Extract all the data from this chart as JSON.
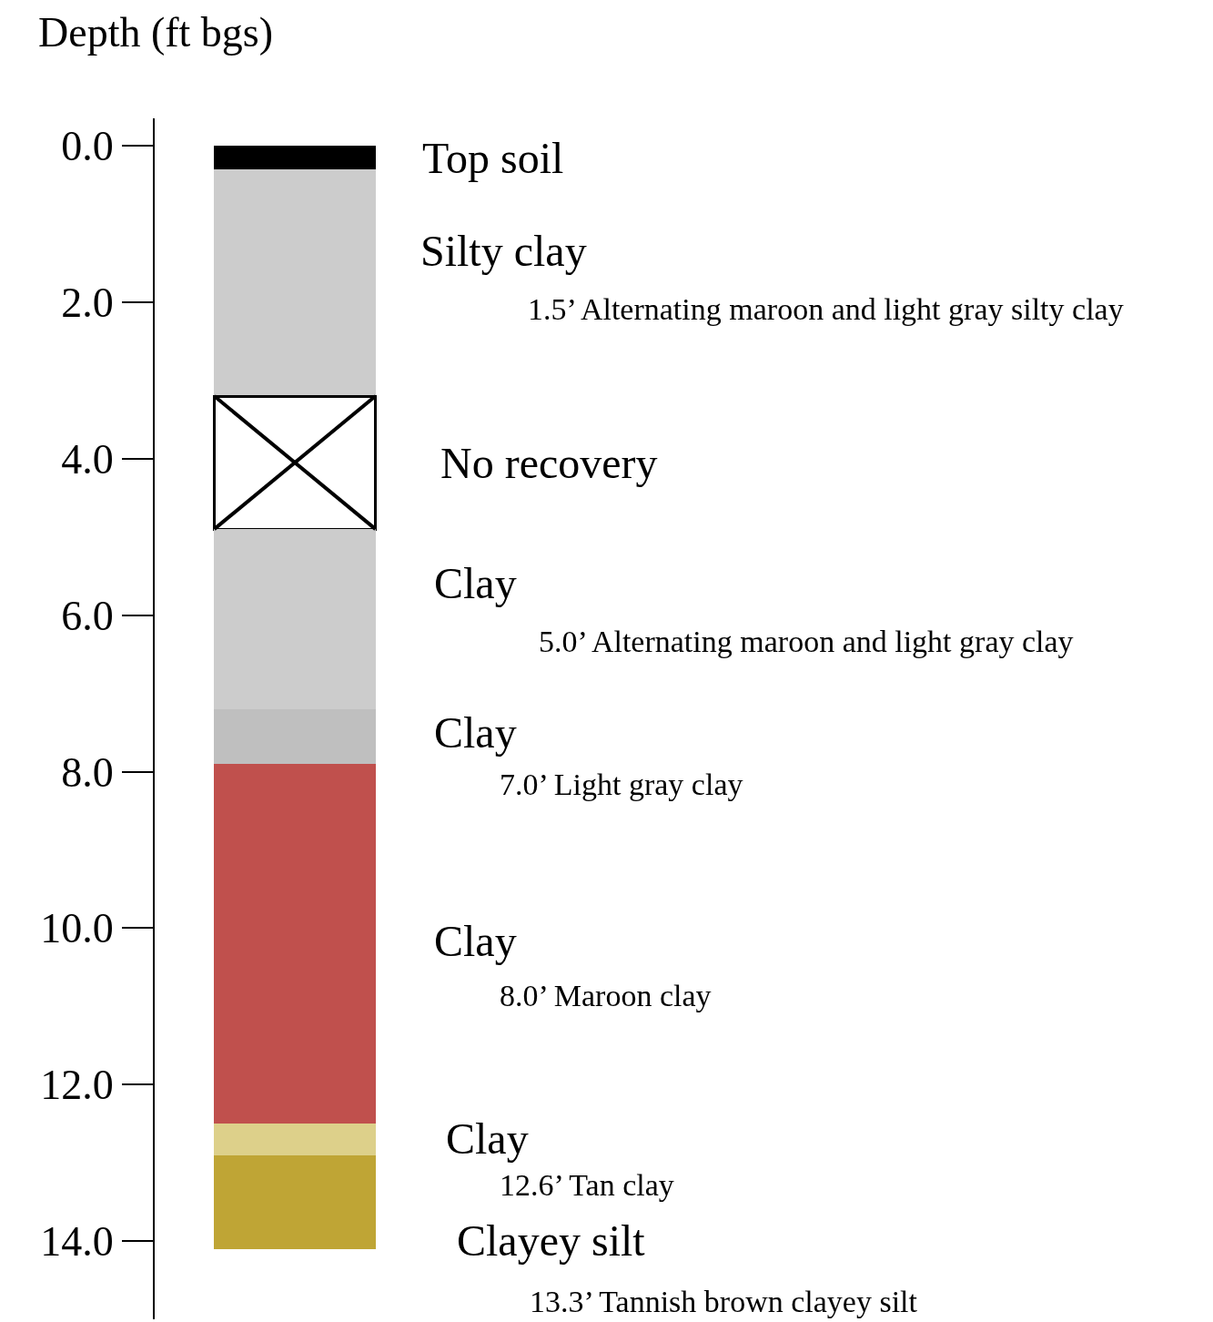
{
  "chart_data": {
    "type": "bar",
    "stacked": true,
    "ylabel": "Depth (ft bgs)",
    "categories": [
      null
    ],
    "series": [
      {
        "name": "Top soil",
        "color": "#000000",
        "values": [
          0.3
        ]
      },
      {
        "name": "Silty clay",
        "color": "#cccccc",
        "values": [
          2.9
        ]
      },
      {
        "name": "No recovery",
        "color": "#ffffff",
        "values": [
          1.7
        ]
      },
      {
        "name": "Clay",
        "color": "#cccccc",
        "values": [
          2.3
        ]
      },
      {
        "name": "Clay",
        "color": "#bfbfbf",
        "values": [
          0.7
        ]
      },
      {
        "name": "Clay",
        "color": "#c0504d",
        "values": [
          4.6
        ]
      },
      {
        "name": "Clay",
        "color": "#ddd08a",
        "values": [
          0.4
        ]
      },
      {
        "name": "Clayey silt",
        "color": "#bfa535",
        "values": [
          1.2
        ]
      }
    ],
    "annotations": [
      "1.5’ Alternating maroon and light gray silty clay",
      "5.0’ Alternating maroon and light gray clay",
      "7.0’ Light gray clay",
      "8.0’ Maroon clay",
      "12.6’ Tan clay",
      "13.3’ Tannish brown clayey silt"
    ],
    "ylim": [
      15,
      -0.35
    ],
    "yticks": [
      {
        "value": 0,
        "label": "0.0"
      },
      {
        "value": 2,
        "label": "2.0"
      },
      {
        "value": 4,
        "label": "4.0"
      },
      {
        "value": 6,
        "label": "6.0"
      },
      {
        "value": 8,
        "label": "8.0"
      },
      {
        "value": 10,
        "label": "10.0"
      },
      {
        "value": 12,
        "label": "12.0"
      },
      {
        "value": 14,
        "label": "14.0"
      }
    ],
    "tick_labels": "y",
    "grid": false,
    "legend": false
  }
}
